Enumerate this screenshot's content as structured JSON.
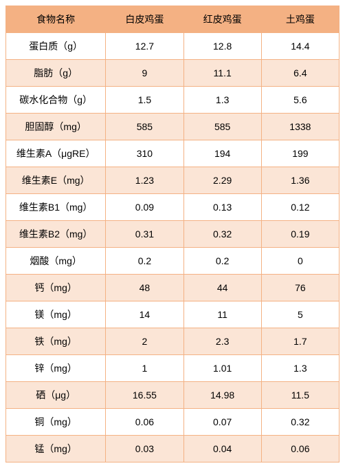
{
  "table": {
    "headers": [
      "食物名称",
      "白皮鸡蛋",
      "红皮鸡蛋",
      "土鸡蛋"
    ],
    "rows": [
      [
        "蛋白质（g）",
        "12.7",
        "12.8",
        "14.4"
      ],
      [
        "脂肪（g）",
        "9",
        "11.1",
        "6.4"
      ],
      [
        "碳水化合物（g）",
        "1.5",
        "1.3",
        "5.6"
      ],
      [
        "胆固醇（mg）",
        "585",
        "585",
        "1338"
      ],
      [
        "维生素A（μgRE）",
        "310",
        "194",
        "199"
      ],
      [
        "维生素E（mg）",
        "1.23",
        "2.29",
        "1.36"
      ],
      [
        "维生素B1（mg）",
        "0.09",
        "0.13",
        "0.12"
      ],
      [
        "维生素B2（mg）",
        "0.31",
        "0.32",
        "0.19"
      ],
      [
        "烟酸（mg）",
        "0.2",
        "0.2",
        "0"
      ],
      [
        "钙（mg）",
        "48",
        "44",
        "76"
      ],
      [
        "镁（mg）",
        "14",
        "11",
        "5"
      ],
      [
        "铁（mg）",
        "2",
        "2.3",
        "1.7"
      ],
      [
        "锌（mg）",
        "1",
        "1.01",
        "1.3"
      ],
      [
        "硒（μg）",
        "16.55",
        "14.98",
        "11.5"
      ],
      [
        "铜（mg）",
        "0.06",
        "0.07",
        "0.32"
      ],
      [
        "锰（mg）",
        "0.03",
        "0.04",
        "0.06"
      ]
    ],
    "header_bg_color": "#f4b183",
    "stripe_color": "#fbe5d6",
    "bg_color": "#ffffff",
    "border_color": "#f4b183",
    "text_color": "#000000",
    "font_size": 14
  }
}
